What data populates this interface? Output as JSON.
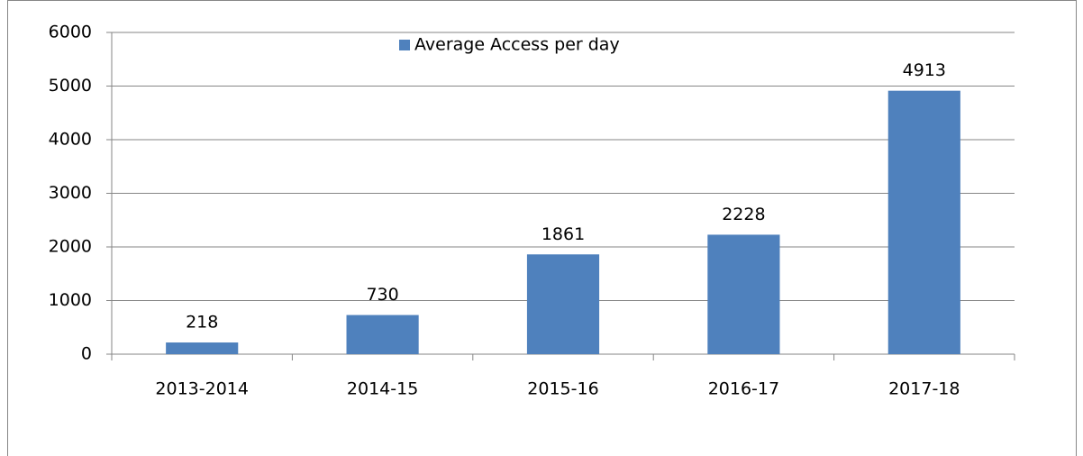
{
  "chart_data": {
    "type": "bar",
    "categories": [
      "2013-2014",
      "2014-15",
      "2015-16",
      "2016-17",
      "2017-18"
    ],
    "series": [
      {
        "name": "Average Access per day",
        "color": "#4f81bd",
        "values": [
          218,
          730,
          1861,
          2228,
          4913
        ]
      }
    ],
    "ylim": [
      0,
      6000
    ],
    "yticks": [
      0,
      1000,
      2000,
      3000,
      4000,
      5000,
      6000
    ],
    "grid": true,
    "legend": "top",
    "data_labels": true
  }
}
